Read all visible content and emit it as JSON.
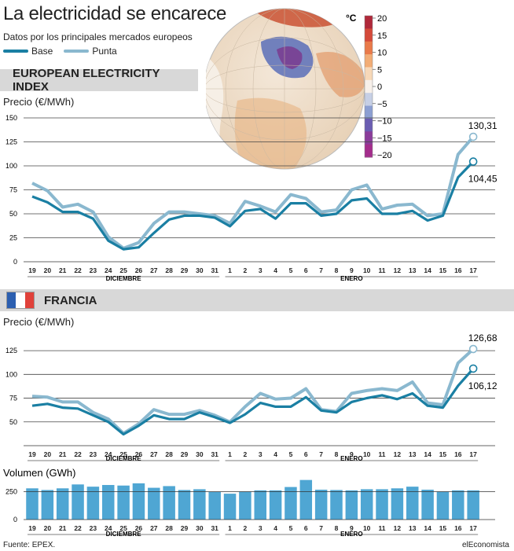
{
  "header": {
    "title": "La electricidad se encarece",
    "subtitle": "Datos por los principales mercados europeos",
    "legend": [
      {
        "label": "Base",
        "color": "#1a7fa3"
      },
      {
        "label": "Punta",
        "color": "#8ab8cf"
      }
    ]
  },
  "colorbar": {
    "unit": "°C",
    "ticks": [
      "20",
      "15",
      "10",
      "5",
      "0",
      "−5",
      "−10",
      "−15",
      "−20"
    ]
  },
  "sections": {
    "eei": "EUROPEAN ELECTRICITY INDEX",
    "fr": "FRANCIA"
  },
  "footer": {
    "source": "Fuente: EPEX.",
    "brand": "elEconomista"
  },
  "colors": {
    "base": "#1a7fa3",
    "punta": "#8ab8cf",
    "bar": "#4fa6d3",
    "section": "#d8d8d8"
  },
  "chart_data": [
    {
      "type": "line",
      "ylabel": "Precio (€/MWh)",
      "ylim": [
        0,
        150
      ],
      "yticks": [
        0,
        25,
        50,
        75,
        100,
        125,
        150
      ],
      "categories": [
        "19",
        "20",
        "21",
        "22",
        "23",
        "24",
        "25",
        "26",
        "27",
        "28",
        "29",
        "30",
        "31",
        "1",
        "2",
        "3",
        "4",
        "5",
        "6",
        "7",
        "8",
        "9",
        "10",
        "11",
        "12",
        "13",
        "14",
        "15",
        "16",
        "17"
      ],
      "month_labels": [
        "DICIEMBRE",
        "ENERO"
      ],
      "series": [
        {
          "name": "Base",
          "values": [
            68,
            62,
            52,
            52,
            45,
            22,
            13,
            15,
            30,
            44,
            48,
            48,
            46,
            37,
            53,
            55,
            45,
            61,
            61,
            48,
            50,
            64,
            66,
            50,
            50,
            53,
            43,
            48,
            88,
            104.45
          ]
        },
        {
          "name": "Punta",
          "values": [
            82,
            74,
            57,
            60,
            52,
            26,
            14,
            20,
            40,
            52,
            52,
            50,
            48,
            40,
            63,
            58,
            52,
            70,
            66,
            52,
            54,
            75,
            80,
            55,
            59,
            60,
            48,
            50,
            112,
            130.31
          ]
        }
      ],
      "annotations": [
        "130,31",
        "104,45"
      ]
    },
    {
      "type": "line",
      "ylabel": "Precio (€/MWh)",
      "ylim": [
        25,
        135
      ],
      "yticks": [
        50,
        75,
        100,
        125
      ],
      "categories": [
        "19",
        "20",
        "21",
        "22",
        "23",
        "24",
        "25",
        "26",
        "27",
        "28",
        "29",
        "30",
        "31",
        "1",
        "2",
        "3",
        "4",
        "5",
        "6",
        "7",
        "8",
        "9",
        "10",
        "11",
        "12",
        "13",
        "14",
        "15",
        "16",
        "17"
      ],
      "month_labels": [
        "DICIEMBRE",
        "ENERO"
      ],
      "series": [
        {
          "name": "Base",
          "values": [
            67,
            69,
            65,
            64,
            57,
            50,
            37,
            46,
            57,
            53,
            53,
            60,
            55,
            49,
            58,
            70,
            66,
            66,
            76,
            62,
            60,
            71,
            75,
            78,
            74,
            80,
            67,
            65,
            88,
            106.12
          ]
        },
        {
          "name": "Punta",
          "values": [
            77,
            76,
            71,
            71,
            60,
            53,
            38,
            48,
            63,
            58,
            58,
            62,
            57,
            50,
            66,
            80,
            74,
            75,
            85,
            63,
            61,
            80,
            83,
            85,
            83,
            92,
            70,
            68,
            112,
            126.68
          ]
        }
      ],
      "annotations": [
        "126,68",
        "106,12"
      ]
    },
    {
      "type": "bar",
      "ylabel": "Volumen (GWh)",
      "ylim": [
        0,
        430
      ],
      "yticks": [
        0,
        250
      ],
      "categories": [
        "19",
        "20",
        "21",
        "22",
        "23",
        "24",
        "25",
        "26",
        "27",
        "28",
        "29",
        "30",
        "31",
        "1",
        "2",
        "3",
        "4",
        "5",
        "6",
        "7",
        "8",
        "9",
        "10",
        "11",
        "12",
        "13",
        "14",
        "15",
        "16",
        "17"
      ],
      "month_labels": [
        "DICIEMBRE",
        "ENERO"
      ],
      "values": [
        280,
        265,
        280,
        315,
        295,
        310,
        305,
        325,
        285,
        300,
        265,
        272,
        248,
        232,
        250,
        262,
        262,
        292,
        355,
        268,
        265,
        262,
        272,
        272,
        280,
        295,
        268,
        250,
        262,
        262
      ]
    }
  ]
}
